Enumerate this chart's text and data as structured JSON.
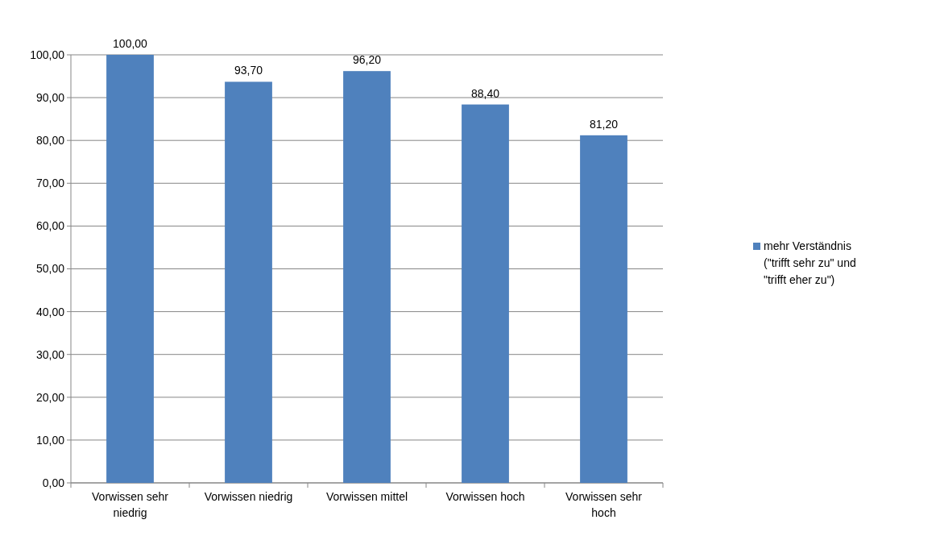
{
  "chart_data": {
    "type": "bar",
    "categories": [
      "Vorwissen sehr niedrig",
      "Vorwissen niedrig",
      "Vorwissen mittel",
      "Vorwissen hoch",
      "Vorwissen sehr hoch"
    ],
    "series": [
      {
        "name": "mehr Verständnis (\"trifft sehr zu\" und \"trifft eher zu\")",
        "color": "#4f81bd",
        "values": [
          100.0,
          93.7,
          96.2,
          88.4,
          81.2
        ],
        "value_labels": [
          "100,00",
          "93,70",
          "96,20",
          "88,40",
          "81,20"
        ]
      }
    ],
    "ylim": [
      0,
      100
    ],
    "yticks": [
      {
        "value": 0,
        "label": "0,00"
      },
      {
        "value": 10,
        "label": "10,00"
      },
      {
        "value": 20,
        "label": "20,00"
      },
      {
        "value": 30,
        "label": "30,00"
      },
      {
        "value": 40,
        "label": "40,00"
      },
      {
        "value": 50,
        "label": "50,00"
      },
      {
        "value": 60,
        "label": "60,00"
      },
      {
        "value": 70,
        "label": "70,00"
      },
      {
        "value": 80,
        "label": "80,00"
      },
      {
        "value": 90,
        "label": "90,00"
      },
      {
        "value": 100,
        "label": "100,00"
      }
    ],
    "grid": "y",
    "legend": "right"
  }
}
